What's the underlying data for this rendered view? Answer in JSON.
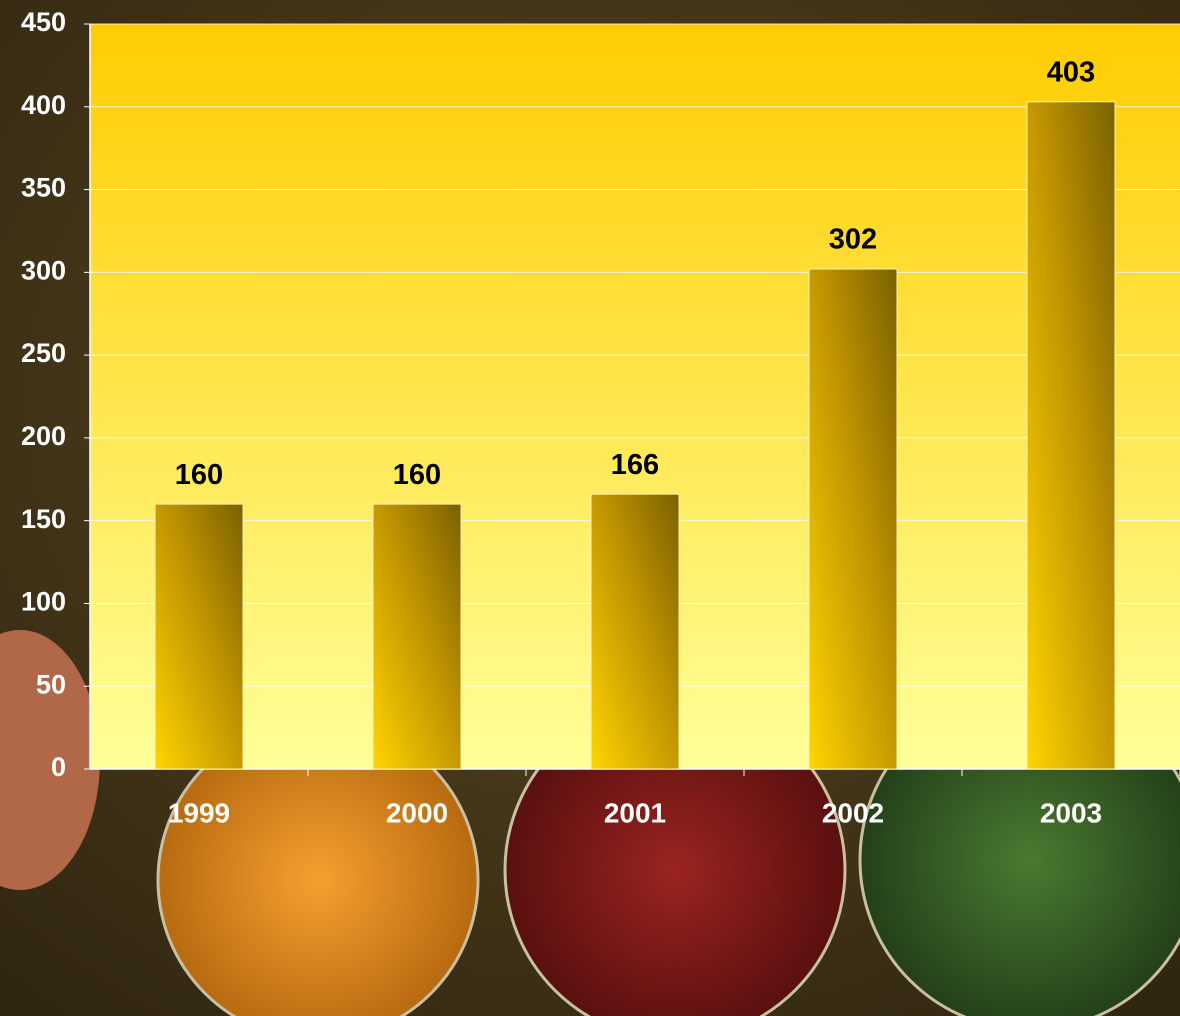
{
  "chart_data": {
    "type": "bar",
    "categories": [
      "1999",
      "2000",
      "2001",
      "2002",
      "2003"
    ],
    "values": [
      160,
      160,
      166,
      302,
      403
    ],
    "color": "#7a6200",
    "ylim": [
      0,
      450
    ],
    "yticks": [
      0,
      50,
      100,
      150,
      200,
      250,
      300,
      350,
      400,
      450
    ],
    "grid": true
  }
}
